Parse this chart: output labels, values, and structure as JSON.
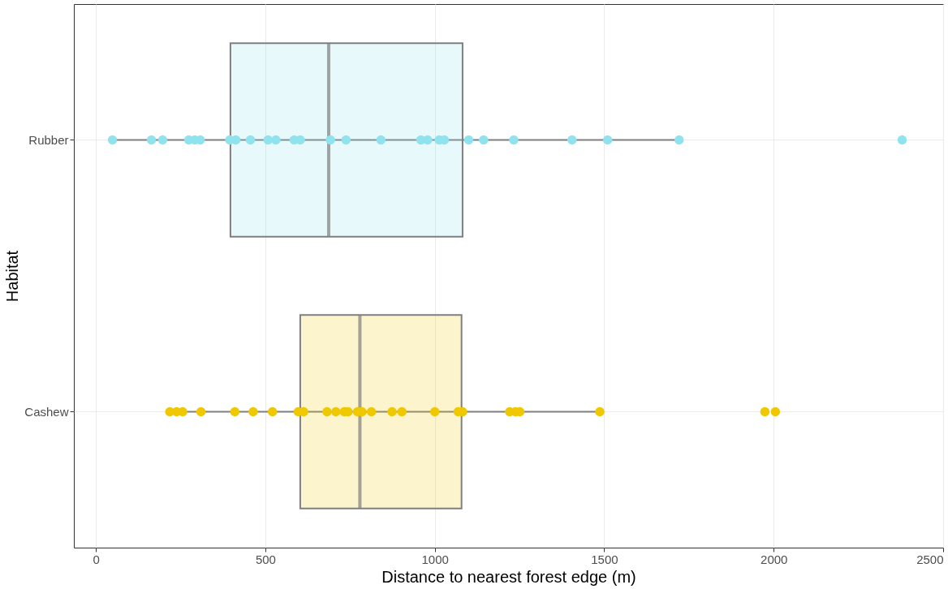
{
  "chart_data": {
    "type": "box",
    "orientation": "horizontal",
    "xlabel": "Distance to nearest forest edge (m)",
    "ylabel": "Habitat",
    "categories": [
      "Rubber",
      "Cashew"
    ],
    "colors": [
      "#8ee3ef",
      "#efc800"
    ],
    "boxes": [
      {
        "low": 49,
        "q1": 397,
        "median": 687,
        "q3": 1082,
        "high": 1721
      },
      {
        "low": 218,
        "q1": 603,
        "median": 779,
        "q3": 1079,
        "high": 1487
      }
    ],
    "series": [
      {
        "type": "scatter",
        "color": "#8ee3ef",
        "x": [
          "Rubber",
          "Rubber",
          "Rubber",
          "Rubber",
          "Rubber",
          "Rubber",
          "Rubber",
          "Rubber",
          "Rubber",
          "Rubber",
          "Rubber",
          "Rubber",
          "Rubber",
          "Rubber",
          "Rubber",
          "Rubber",
          "Rubber",
          "Rubber",
          "Rubber",
          "Rubber",
          "Rubber",
          "Rubber",
          "Rubber",
          "Rubber",
          "Rubber",
          "Rubber",
          "Rubber"
        ],
        "values": [
          49,
          164,
          197,
          274,
          292,
          308,
          395,
          413,
          456,
          508,
          531,
          585,
          603,
          692,
          738,
          841,
          959,
          979,
          1013,
          1028,
          1100,
          1144,
          1233,
          1405,
          1510,
          1721,
          2379
        ]
      },
      {
        "type": "scatter",
        "color": "#efc800",
        "x": [
          "Cashew",
          "Cashew",
          "Cashew",
          "Cashew",
          "Cashew",
          "Cashew",
          "Cashew",
          "Cashew",
          "Cashew",
          "Cashew",
          "Cashew",
          "Cashew",
          "Cashew",
          "Cashew",
          "Cashew",
          "Cashew",
          "Cashew",
          "Cashew",
          "Cashew",
          "Cashew",
          "Cashew",
          "Cashew",
          "Cashew",
          "Cashew",
          "Cashew",
          "Cashew",
          "Cashew"
        ],
        "values": [
          218,
          238,
          256,
          310,
          410,
          464,
          521,
          597,
          613,
          682,
          708,
          733,
          744,
          772,
          785,
          813,
          874,
          903,
          1000,
          1069,
          1082,
          1221,
          1238,
          1251,
          1487,
          1974,
          2005
        ]
      }
    ],
    "xlim": [
      -65,
      2500
    ],
    "xticks": [
      0,
      500,
      1000,
      1500,
      2000,
      2500
    ],
    "grid": true,
    "marker": "circle"
  }
}
